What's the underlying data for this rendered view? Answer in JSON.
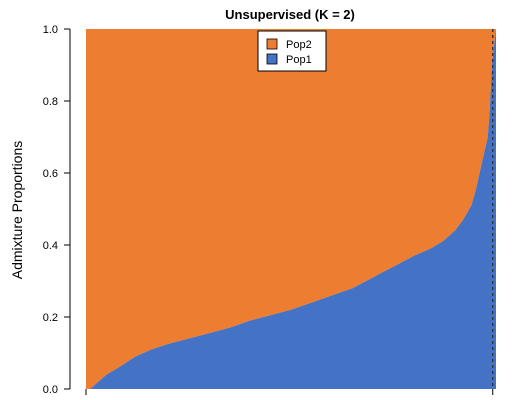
{
  "chart_data": {
    "type": "area",
    "subtype": "stacked-admixture",
    "title": "Unsupervised (K = 2)",
    "xlabel": "",
    "ylabel": "Admixture Proportions",
    "ylim": [
      0,
      1
    ],
    "yticks": [
      "0.0",
      "0.2",
      "0.4",
      "0.6",
      "0.8",
      "1.0"
    ],
    "legend": {
      "position": "top-center",
      "entries": [
        {
          "name": "Pop2",
          "color": "#ED7D31"
        },
        {
          "name": "Pop1",
          "color": "#4472C4"
        }
      ]
    },
    "sorted_by": "Pop1",
    "x_fraction": [
      0,
      0.01,
      0.03,
      0.05,
      0.08,
      0.12,
      0.16,
      0.2,
      0.25,
      0.3,
      0.35,
      0.4,
      0.45,
      0.5,
      0.55,
      0.6,
      0.65,
      0.7,
      0.75,
      0.8,
      0.84,
      0.87,
      0.9,
      0.92,
      0.94,
      0.95,
      0.96,
      0.97,
      0.98,
      0.985,
      0.99,
      1.0
    ],
    "series": [
      {
        "name": "Pop1",
        "color": "#4472C4",
        "values": [
          0,
          0,
          0.02,
          0.04,
          0.06,
          0.09,
          0.11,
          0.125,
          0.14,
          0.155,
          0.17,
          0.19,
          0.205,
          0.22,
          0.24,
          0.26,
          0.28,
          0.31,
          0.34,
          0.37,
          0.39,
          0.41,
          0.44,
          0.47,
          0.51,
          0.55,
          0.6,
          0.65,
          0.7,
          0.78,
          0.9,
          1.0
        ]
      },
      {
        "name": "Pop2",
        "color": "#ED7D31",
        "values": [
          1,
          1,
          0.98,
          0.96,
          0.94,
          0.91,
          0.89,
          0.875,
          0.86,
          0.845,
          0.83,
          0.81,
          0.795,
          0.78,
          0.76,
          0.74,
          0.72,
          0.69,
          0.66,
          0.63,
          0.61,
          0.59,
          0.56,
          0.53,
          0.49,
          0.45,
          0.4,
          0.35,
          0.3,
          0.22,
          0.1,
          0.0
        ]
      }
    ],
    "marker_line": {
      "style": "dotted",
      "x_fraction": 0.992
    }
  }
}
